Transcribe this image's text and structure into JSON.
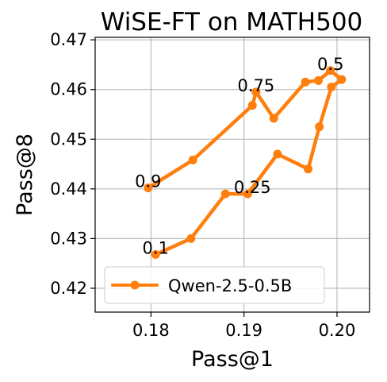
{
  "chart_data": {
    "type": "line",
    "title": "WiSE-FT on MATH500",
    "xlabel": "Pass@1",
    "ylabel": "Pass@8",
    "xlim": [
      0.174,
      0.2035
    ],
    "ylim": [
      0.4152,
      0.4705
    ],
    "xticks": [
      0.18,
      0.19,
      0.2
    ],
    "xtick_labels": [
      "0.18",
      "0.19",
      "0.20"
    ],
    "yticks": [
      0.42,
      0.43,
      0.44,
      0.45,
      0.46,
      0.47
    ],
    "ytick_labels": [
      "0.42",
      "0.43",
      "0.44",
      "0.45",
      "0.46",
      "0.47"
    ],
    "grid": true,
    "legend": {
      "position": "lower-right",
      "entries": [
        "Qwen-2.5-0.5B"
      ]
    },
    "series": [
      {
        "name": "Qwen-2.5-0.5B",
        "color": "#ff7f0e",
        "x": [
          0.1805,
          0.1843,
          0.188,
          0.1904,
          0.1936,
          0.1969,
          0.1981,
          0.1994,
          0.2005,
          0.1993,
          0.198,
          0.1966,
          0.1932,
          0.1913,
          0.1909,
          0.1845,
          0.1797
        ],
        "y": [
          0.4268,
          0.43,
          0.439,
          0.439,
          0.447,
          0.444,
          0.4525,
          0.4605,
          0.462,
          0.4638,
          0.4618,
          0.4615,
          0.4542,
          0.4595,
          0.4568,
          0.4458,
          0.4402
        ]
      }
    ],
    "annotations": [
      {
        "text": "0.1",
        "x": 0.1805,
        "y": 0.4268
      },
      {
        "text": "0.25",
        "x": 0.1909,
        "y": 0.439
      },
      {
        "text": "0.5",
        "x": 0.1993,
        "y": 0.4638
      },
      {
        "text": "0.75",
        "x": 0.1913,
        "y": 0.4595
      },
      {
        "text": "0.9",
        "x": 0.1797,
        "y": 0.4402
      }
    ]
  }
}
